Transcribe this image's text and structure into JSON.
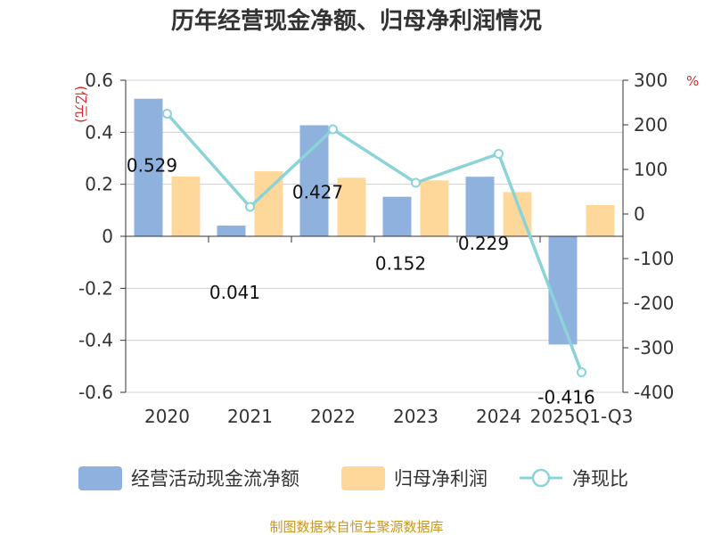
{
  "chart_data": {
    "type": "bar",
    "title": "历年经营现金净额、归母净利润情况",
    "categories": [
      "2020",
      "2021",
      "2022",
      "2023",
      "2024",
      "2025Q1-Q3"
    ],
    "series": [
      {
        "name": "经营活动现金流净额",
        "kind": "bar",
        "axis": "left",
        "color": "#8eb1dd",
        "values": [
          0.529,
          0.041,
          0.427,
          0.152,
          0.229,
          -0.416
        ],
        "labels": [
          "0.529",
          "0.041",
          "0.427",
          "0.152",
          "0.229",
          "-0.416"
        ]
      },
      {
        "name": "归母净利润",
        "kind": "bar",
        "axis": "left",
        "color": "#fdd89a",
        "values": [
          0.23,
          0.25,
          0.225,
          0.215,
          0.17,
          0.12
        ]
      },
      {
        "name": "净现比",
        "kind": "line",
        "axis": "right",
        "color": "#8bd3d8",
        "values": [
          225,
          16,
          190,
          70,
          135,
          -355
        ]
      }
    ],
    "left_axis": {
      "unit": "(亿元)",
      "ylim": [
        -0.6,
        0.6
      ],
      "ticks": [
        0.6,
        0.4,
        0.2,
        0,
        -0.2,
        -0.4,
        -0.6
      ],
      "tick_labels": [
        "0.6",
        "0.4",
        "0.2",
        "0",
        "-0.2",
        "-0.4",
        "-0.6"
      ]
    },
    "right_axis": {
      "unit": "%",
      "ylim": [
        -400,
        300
      ],
      "ticks": [
        300,
        200,
        100,
        0,
        -100,
        -200,
        -300,
        -400
      ],
      "tick_labels": [
        "300",
        "200",
        "100",
        "0",
        "-100",
        "-200",
        "-300",
        "-400"
      ]
    },
    "grid": true,
    "legend_position": "bottom"
  },
  "source": "制图数据来自恒生聚源数据库"
}
